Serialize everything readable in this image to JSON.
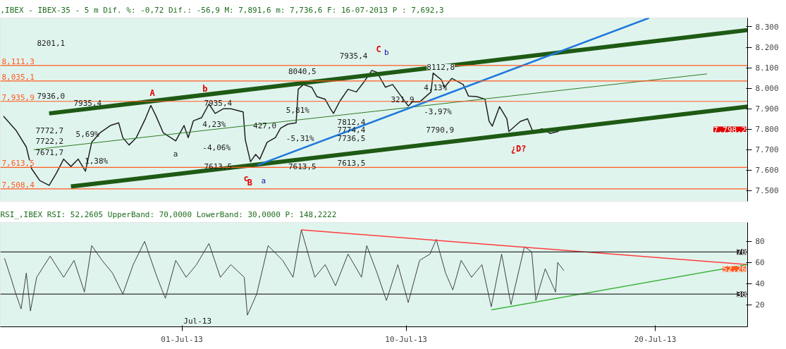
{
  "chart_data": [
    {
      "type": "line",
      "title": ",IBEX - IBEX-35 - 5 m Dif. %: -0,72 Dif.: -56,9 M: 7,891,6 m: 7,736,6 F: 16-07-2013 P : 7,692,3",
      "xlim": [
        "2013-06-23T17:00",
        "2013-07-23T17:00"
      ],
      "ylim": [
        7448,
        8343
      ],
      "yticks": [
        {
          "value": 7500,
          "label": "7.500"
        },
        {
          "value": 7600,
          "label": "7.600"
        },
        {
          "value": 7700,
          "label": "7.700"
        },
        {
          "value": 7800,
          "label": "7.800"
        },
        {
          "value": 7900,
          "label": "7.900"
        },
        {
          "value": 8000,
          "label": "8.000"
        },
        {
          "value": 8100,
          "label": "8.100"
        },
        {
          "value": 8200,
          "label": "8.200"
        },
        {
          "value": 8300,
          "label": "8.300"
        }
      ],
      "tick_labels": "y",
      "grid": false,
      "series": [
        {
          "color": "#202020",
          "x": [
            "2013-06-23T20:00",
            "2013-06-24T08:00",
            "2013-06-24T18:00",
            "2013-06-24T23:00",
            "2013-06-25T07:00",
            "2013-06-25T16:00",
            "2013-06-25T23:00",
            "2013-06-26T06:00",
            "2013-06-26T13:00",
            "2013-06-26T20:00",
            "2013-06-27T03:00",
            "2013-06-27T09:00",
            "2013-06-27T17:00",
            "2013-06-28T03:00",
            "2013-06-28T11:00",
            "2013-06-28T15:00",
            "2013-06-28T21:00",
            "2013-06-29T04:00",
            "2013-06-29T13:00",
            "2013-06-29T18:00",
            "2013-06-29T23:00",
            "2013-06-30T06:00",
            "2013-06-30T18:00",
            "2013-07-01T02:00",
            "2013-07-01T06:00",
            "2013-07-01T11:00",
            "2013-07-01T19:00",
            "2013-07-02T02:00",
            "2013-07-02T08:00",
            "2013-07-02T16:00",
            "2013-07-02T23:00",
            "2013-07-03T11:00",
            "2013-07-03T13:00",
            "2013-07-03T18:00",
            "2013-07-03T23:00",
            "2013-07-04T03:00",
            "2013-07-04T10:00",
            "2013-07-04T18:00",
            "2013-07-04T23:00",
            "2013-07-05T06:00",
            "2013-07-05T14:00",
            "2013-07-05T16:00",
            "2013-07-05T21:00",
            "2013-07-06T05:00",
            "2013-07-06T10:00",
            "2013-07-06T18:00",
            "2013-07-06T23:00",
            "2013-07-07T02:00",
            "2013-07-07T08:00",
            "2013-07-07T16:00",
            "2013-07-08T00:00",
            "2013-07-08T07:00",
            "2013-07-08T15:00",
            "2013-07-08T20:00",
            "2013-07-09T04:00",
            "2013-07-09T11:00",
            "2013-07-09T18:00",
            "2013-07-10T02:00",
            "2013-07-10T06:00",
            "2013-07-10T13:00",
            "2013-07-11T00:00",
            "2013-07-11T02:00",
            "2013-07-11T10:00",
            "2013-07-11T13:00",
            "2013-07-11T20:00",
            "2013-07-12T07:00",
            "2013-07-12T12:00",
            "2013-07-12T20:00",
            "2013-07-13T04:00",
            "2013-07-13T08:00",
            "2013-07-13T11:00",
            "2013-07-13T18:00",
            "2013-07-14T01:00",
            "2013-07-14T03:00",
            "2013-07-14T14:00",
            "2013-07-14T21:00",
            "2013-07-15T02:00",
            "2013-07-15T11:00",
            "2013-07-15T19:00",
            "2013-07-16T02:00",
            "2013-07-16T05:00"
          ],
          "values": [
            7864,
            7795,
            7713,
            7608,
            7549,
            7526,
            7585,
            7654,
            7618,
            7654,
            7595,
            7736,
            7782,
            7818,
            7831,
            7759,
            7723,
            7759,
            7854,
            7916,
            7864,
            7782,
            7743,
            7818,
            7759,
            7841,
            7857,
            7923,
            7877,
            7900,
            7900,
            7884,
            7749,
            7641,
            7677,
            7654,
            7736,
            7759,
            7805,
            7825,
            7831,
            7995,
            8018,
            8005,
            7959,
            7946,
            7900,
            7877,
            7936,
            7995,
            7982,
            8028,
            8087,
            8077,
            8005,
            8018,
            7969,
            7913,
            7933,
            7933,
            7982,
            8074,
            8041,
            8005,
            8048,
            8018,
            7962,
            7959,
            7946,
            7838,
            7815,
            7910,
            7851,
            7789,
            7838,
            7851,
            7789,
            7802,
            7779,
            7789,
            7798.2
          ]
        },
        {
          "color": "#1e5a14",
          "x": [
            "2013-06-25T16:00",
            "2013-07-23T17:00"
          ],
          "values": [
            7877,
            8284
          ]
        },
        {
          "color": "#1e5a14",
          "x": [
            "2013-06-26T13:00",
            "2013-07-23T17:00"
          ],
          "values": [
            7520,
            7910
          ]
        },
        {
          "color": "#2e7d22",
          "x": [
            "2013-06-25T01:00",
            "2013-07-22T02:00"
          ],
          "values": [
            7700,
            8070
          ]
        },
        {
          "color": "#1e78dc",
          "x": [
            "2013-07-04T01:00",
            "2013-07-19T18:00"
          ],
          "values": [
            7625,
            8343
          ]
        }
      ],
      "ref_lines": [
        {
          "axis": "y",
          "value": 8111.3,
          "label": "8,111,3",
          "color": "#ff5a1e"
        },
        {
          "axis": "y",
          "value": 8035.1,
          "label": "8,035,1",
          "color": "#ff5a1e"
        },
        {
          "axis": "y",
          "value": 7935.9,
          "label": "7,935,9",
          "color": "#ff5a1e"
        },
        {
          "axis": "y",
          "value": 7613.5,
          "label": "7,613,5",
          "color": "#ff5a1e"
        },
        {
          "axis": "y",
          "value": 7508.4,
          "label": "7,508,4",
          "color": "#ff5a1e"
        }
      ],
      "annotations": [
        "8201,1",
        "7936,0",
        "7935,4",
        "7772,7",
        "7722,2",
        "7671,7",
        "5,69%",
        "1,38%",
        "A",
        "a",
        "b",
        "7935,4",
        "4,23%",
        "-4,06%",
        "7613,5",
        "427,0",
        "c",
        "B",
        "a",
        "8040,5",
        "5,81%",
        "-5,31%",
        "7613,5",
        "7935,4",
        "C",
        "b",
        "7812,4",
        "7774,4",
        "7736,5",
        "7613,5",
        "321,9",
        "8112,8",
        "4,13%",
        "-3,97%",
        "7790,9",
        "¿D?",
        "7.798,2"
      ]
    },
    {
      "type": "line",
      "title": "RSI_,IBEX RSI: 52,2605 UpperBand: 70,0000 LowerBand: 30,0000 P: 148,2222",
      "xlim": [
        "2013-06-23T17:00",
        "2013-07-23T17:00"
      ],
      "ylim": [
        -1,
        98
      ],
      "xticks": [
        {
          "value": "2013-07-01",
          "label": "01-Jul-13"
        },
        {
          "value": "2013-07-10",
          "label": "10-Jul-13"
        },
        {
          "value": "2013-07-20",
          "label": "20-Jul-13"
        }
      ],
      "yticks": [
        20,
        40,
        60,
        80
      ],
      "grid": false,
      "series": [
        {
          "color": "#404040",
          "x": [
            "2013-06-23T21:00",
            "2013-06-24T03:00",
            "2013-06-24T08:00",
            "2013-06-24T13:00",
            "2013-06-24T18:00",
            "2013-06-24T22:00",
            "2013-06-25T04:00",
            "2013-06-25T17:00",
            "2013-06-26T06:00",
            "2013-06-26T16:00",
            "2013-06-27T02:00",
            "2013-06-27T09:00",
            "2013-06-27T19:00",
            "2013-06-28T05:00",
            "2013-06-28T15:00",
            "2013-06-29T01:00",
            "2013-06-29T12:00",
            "2013-06-30T00:00",
            "2013-06-30T08:00",
            "2013-06-30T18:00",
            "2013-07-01T04:00",
            "2013-07-01T14:00",
            "2013-07-02T02:00",
            "2013-07-02T13:00",
            "2013-07-02T23:00",
            "2013-07-03T12:00",
            "2013-07-03T15:00",
            "2013-07-04T00:00",
            "2013-07-04T11:00",
            "2013-07-05T01:00",
            "2013-07-05T11:00",
            "2013-07-05T19:00",
            "2013-07-06T08:00",
            "2013-07-06T18:00",
            "2013-07-07T04:00",
            "2013-07-07T16:00",
            "2013-07-08T05:00",
            "2013-07-08T10:00",
            "2013-07-08T20:00",
            "2013-07-09T05:00",
            "2013-07-09T16:00",
            "2013-07-10T02:00",
            "2013-07-10T13:00",
            "2013-07-10T23:00",
            "2013-07-11T05:00",
            "2013-07-11T14:00",
            "2013-07-11T21:00",
            "2013-07-12T05:00",
            "2013-07-12T15:00",
            "2013-07-13T01:00",
            "2013-07-13T10:00",
            "2013-07-13T20:00",
            "2013-07-14T05:00",
            "2013-07-14T18:00",
            "2013-07-15T01:00",
            "2013-07-15T05:00",
            "2013-07-15T14:00",
            "2013-07-16T00:00",
            "2013-07-16T02:00",
            "2013-07-16T08:00"
          ],
          "values": [
            64,
            46,
            30,
            16,
            50,
            14,
            46,
            66,
            46,
            62,
            32,
            76,
            62,
            50,
            30,
            58,
            80,
            46,
            26,
            62,
            46,
            58,
            78,
            46,
            58,
            46,
            10,
            30,
            76,
            62,
            46,
            91,
            46,
            58,
            38,
            68,
            46,
            76,
            50,
            24,
            58,
            22,
            62,
            68,
            82,
            50,
            34,
            62,
            46,
            58,
            18,
            68,
            20,
            75,
            70,
            24,
            54,
            32,
            60,
            52.26
          ]
        },
        {
          "color": "#ff3c3c",
          "x": [
            "2013-07-05T19:00",
            "2013-07-23T17:00"
          ],
          "values": [
            91,
            58
          ]
        },
        {
          "color": "#3cb43c",
          "x": [
            "2013-07-13T10:00",
            "2013-07-23T17:00"
          ],
          "values": [
            15,
            58
          ]
        }
      ],
      "ref_lines": [
        {
          "axis": "y",
          "value": 70,
          "label": "70",
          "color": "#303030"
        },
        {
          "axis": "y",
          "value": 30,
          "label": "30",
          "color": "#303030"
        }
      ],
      "annotations": [
        "Jul-13",
        "52,26"
      ]
    }
  ]
}
